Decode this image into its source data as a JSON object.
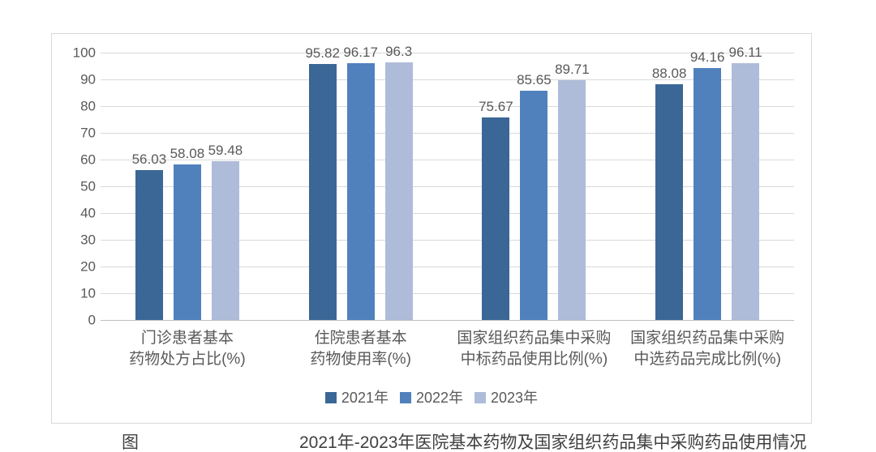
{
  "chart_data": {
    "type": "bar",
    "title": "",
    "xlabel": "",
    "ylabel": "",
    "categories": [
      "门诊患者基本\n药物处方占比(%)",
      "住院患者基本\n药物使用率(%)",
      "国家组织药品集中采购\n中标药品使用比例(%)",
      "国家组织药品集中采购\n中选药品完成比例(%)"
    ],
    "series": [
      {
        "name": "2021年",
        "color": "#3A6795",
        "values": [
          56.03,
          95.82,
          75.67,
          88.08
        ]
      },
      {
        "name": "2022年",
        "color": "#5081BD",
        "values": [
          58.08,
          96.17,
          85.65,
          94.16
        ]
      },
      {
        "name": "2023年",
        "color": "#AEBCD9",
        "values": [
          59.48,
          96.3,
          89.71,
          96.11
        ]
      }
    ],
    "value_labels": true,
    "ylim": [
      0,
      100
    ],
    "ytick_step": 10,
    "grid": true,
    "legend_position": "bottom"
  },
  "style_colors": {
    "panel_border": "#D9D9D9",
    "gridline": "#D9D9D9",
    "axis_baseline": "#BFBFBF",
    "text": "#595959"
  },
  "caption": {
    "prefix": "图",
    "text": "2021年-2023年医院基本药物及国家组织药品集中采购药品使用情况"
  }
}
